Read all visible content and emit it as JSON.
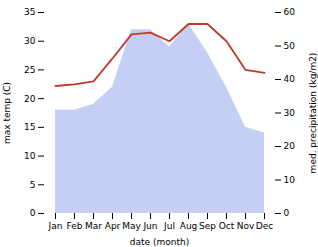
{
  "chart_data": {
    "type": "line",
    "xlabel": "date (month)",
    "ylabel": "max temp (C)",
    "y2label": "med. precipitation (kg/m2)",
    "categories": [
      "Jan",
      "Feb",
      "Mar",
      "Apr",
      "May",
      "Jun",
      "Jul",
      "Aug",
      "Sep",
      "Oct",
      "Nov",
      "Dec"
    ],
    "series": [
      {
        "type": "area",
        "color": "#c5cff5",
        "values": [
          18,
          18,
          19,
          22,
          32,
          32,
          29,
          33,
          28,
          22,
          15,
          14
        ]
      },
      {
        "type": "line",
        "color": "#c0392b",
        "values": [
          22.2,
          22.5,
          23.0,
          27.0,
          31.2,
          31.5,
          30.0,
          33.0,
          33.0,
          30.0,
          25.0,
          24.5
        ]
      }
    ],
    "ylim": [
      0,
      35
    ],
    "yticks": [
      0,
      5,
      10,
      15,
      20,
      25,
      30,
      35
    ],
    "y2lim": [
      0,
      60
    ],
    "y2ticks": [
      0,
      10,
      20,
      30,
      40,
      50,
      60
    ],
    "grid": false
  }
}
